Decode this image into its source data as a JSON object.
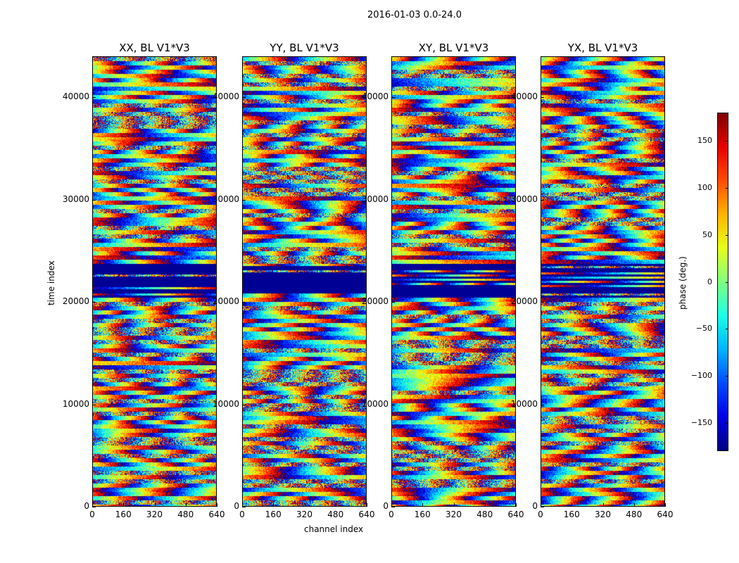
{
  "suptitle": "2016-01-03 0.0-24.0",
  "chart_data": {
    "type": "heatmap",
    "panels": [
      {
        "title": "XX, BL V1*V3"
      },
      {
        "title": "YY, BL V1*V3"
      },
      {
        "title": "XY, BL V1*V3"
      },
      {
        "title": "YX, BL V1*V3"
      }
    ],
    "xlabel": "channel index",
    "ylabel": "time index",
    "xlim": [
      0,
      640
    ],
    "ylim": [
      0,
      44000
    ],
    "xticks": [
      0,
      160,
      320,
      480,
      640
    ],
    "yticks": [
      0,
      10000,
      20000,
      30000,
      40000
    ],
    "colorbar": {
      "label": "phase (deg.)",
      "range": [
        -180,
        180
      ],
      "ticks": [
        150,
        100,
        50,
        0,
        -50,
        -100,
        -150
      ],
      "tick_labels": [
        "150",
        "100",
        "50",
        "0",
        "−50",
        "−100",
        "−150"
      ],
      "colormap": "jet"
    }
  }
}
